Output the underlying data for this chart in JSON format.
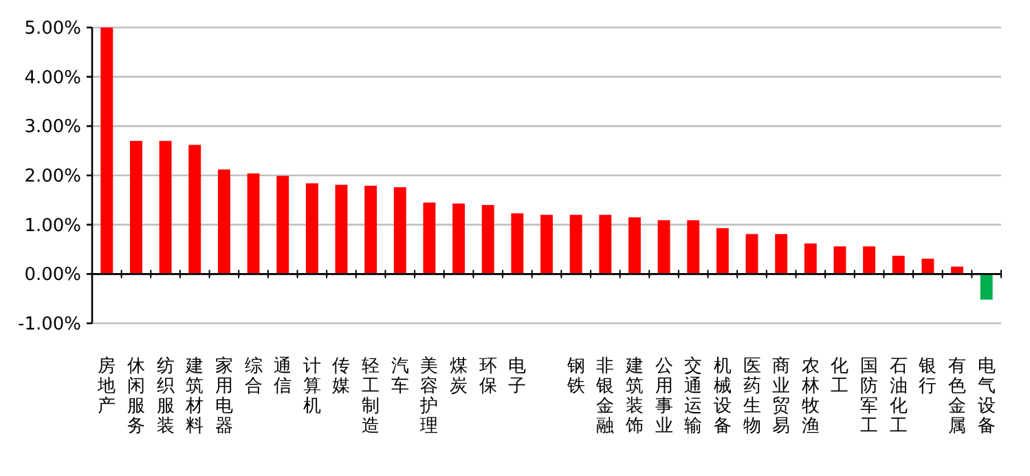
{
  "chart_data": {
    "type": "bar",
    "categories": [
      "房地产",
      "休闲服务",
      "纺织服装",
      "建筑材料",
      "家用电器",
      "综合",
      "通信",
      "计算机",
      "传媒",
      "轻工制造",
      "汽车",
      "美容护理",
      "煤炭",
      "环保",
      "电子",
      null,
      "钢铁",
      "非银金融",
      "建筑装饰",
      "公用事业",
      "交通运输",
      "机械设备",
      "医药生物",
      "商业贸易",
      "农林牧渔",
      "化工",
      "国防军工",
      "石油化工",
      "银行",
      "有色金属",
      "电气设备"
    ],
    "values": [
      5.0,
      2.7,
      2.7,
      2.62,
      2.12,
      2.04,
      1.99,
      1.84,
      1.81,
      1.79,
      1.76,
      1.45,
      1.43,
      1.4,
      1.23,
      1.2,
      1.2,
      1.2,
      1.15,
      1.09,
      1.09,
      0.93,
      0.81,
      0.81,
      0.62,
      0.56,
      0.56,
      0.37,
      0.31,
      0.15,
      -0.52
    ],
    "colors": [
      "#ff0000",
      "#ff0000",
      "#ff0000",
      "#ff0000",
      "#ff0000",
      "#ff0000",
      "#ff0000",
      "#ff0000",
      "#ff0000",
      "#ff0000",
      "#ff0000",
      "#ff0000",
      "#ff0000",
      "#ff0000",
      "#ff0000",
      "#ff0000",
      "#ff0000",
      "#ff0000",
      "#ff0000",
      "#ff0000",
      "#ff0000",
      "#ff0000",
      "#ff0000",
      "#ff0000",
      "#ff0000",
      "#ff0000",
      "#ff0000",
      "#ff0000",
      "#ff0000",
      "#ff0000",
      "#00b050"
    ],
    "ylim": [
      -1,
      5
    ],
    "yticks": [
      {
        "value": -1,
        "label": "-1.00%"
      },
      {
        "value": 0,
        "label": "0.00%"
      },
      {
        "value": 1,
        "label": "1.00%"
      },
      {
        "value": 2,
        "label": "2.00%"
      },
      {
        "value": 3,
        "label": "3.00%"
      },
      {
        "value": 4,
        "label": "4.00%"
      },
      {
        "value": 5,
        "label": "5.00%"
      }
    ],
    "grid": "y"
  }
}
